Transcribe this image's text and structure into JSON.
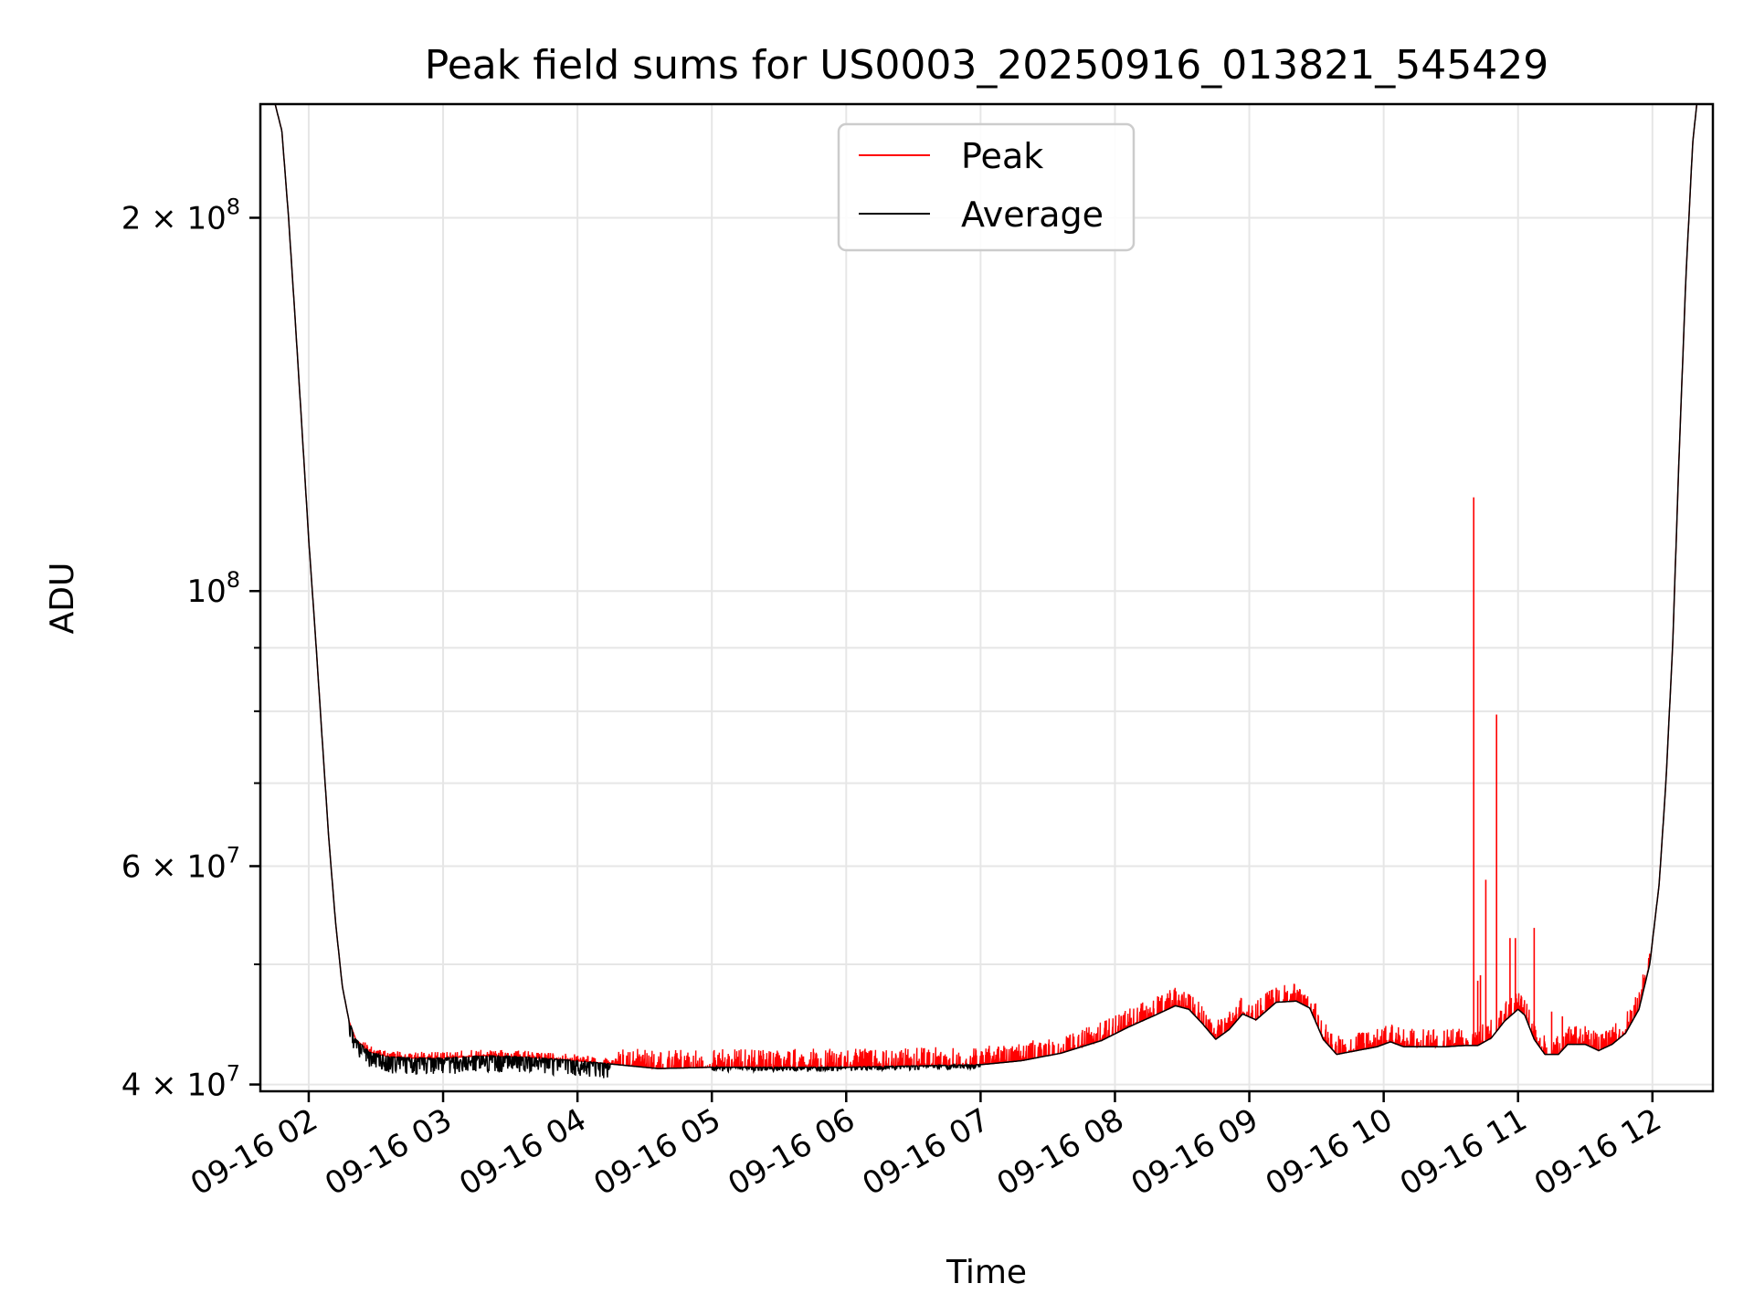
{
  "chart_data": {
    "type": "line",
    "title": "Peak field sums for US0003_20250916_013821_545429",
    "xlabel": "Time",
    "ylabel": "ADU",
    "yscale": "log",
    "ylim": [
      39500000,
      247000000
    ],
    "xlim_hours": [
      1.64,
      12.45
    ],
    "grid": true,
    "legend_position": "upper center",
    "x_ticks": [
      {
        "label": "09-16 02",
        "hour": 2
      },
      {
        "label": "09-16 03",
        "hour": 3
      },
      {
        "label": "09-16 04",
        "hour": 4
      },
      {
        "label": "09-16 05",
        "hour": 5
      },
      {
        "label": "09-16 06",
        "hour": 6
      },
      {
        "label": "09-16 07",
        "hour": 7
      },
      {
        "label": "09-16 08",
        "hour": 8
      },
      {
        "label": "09-16 09",
        "hour": 9
      },
      {
        "label": "09-16 10",
        "hour": 10
      },
      {
        "label": "09-16 11",
        "hour": 11
      },
      {
        "label": "09-16 12",
        "hour": 12
      }
    ],
    "y_major_ticks": [
      {
        "value": 40000000,
        "mant": "4",
        "exp": "7"
      },
      {
        "value": 60000000,
        "mant": "6",
        "exp": "7"
      },
      {
        "value": 100000000,
        "mant": "",
        "exp": "8"
      },
      {
        "value": 200000000,
        "mant": "2",
        "exp": "8"
      }
    ],
    "y_minor_ticks": [
      50000000,
      70000000,
      80000000,
      90000000
    ],
    "series": [
      {
        "name": "Average",
        "color": "#000000",
        "points": [
          [
            1.64,
            247000000
          ],
          [
            1.75,
            247000000
          ],
          [
            1.8,
            235000000
          ],
          [
            1.85,
            200000000
          ],
          [
            1.9,
            165000000
          ],
          [
            1.95,
            135000000
          ],
          [
            2.0,
            110000000
          ],
          [
            2.05,
            92000000
          ],
          [
            2.1,
            76000000
          ],
          [
            2.15,
            63000000
          ],
          [
            2.2,
            54000000
          ],
          [
            2.25,
            48000000
          ],
          [
            2.3,
            45000000
          ],
          [
            2.35,
            43500000
          ],
          [
            2.45,
            42500000
          ],
          [
            2.6,
            42100000
          ],
          [
            2.8,
            42000000
          ],
          [
            3.0,
            42000000
          ],
          [
            3.3,
            42200000
          ],
          [
            3.6,
            42100000
          ],
          [
            4.0,
            41800000
          ],
          [
            4.3,
            41500000
          ],
          [
            4.6,
            41200000
          ],
          [
            5.0,
            41300000
          ],
          [
            5.5,
            41300000
          ],
          [
            6.0,
            41300000
          ],
          [
            6.5,
            41400000
          ],
          [
            7.0,
            41500000
          ],
          [
            7.3,
            41800000
          ],
          [
            7.6,
            42400000
          ],
          [
            7.9,
            43400000
          ],
          [
            8.1,
            44500000
          ],
          [
            8.3,
            45500000
          ],
          [
            8.45,
            46300000
          ],
          [
            8.55,
            46000000
          ],
          [
            8.65,
            44800000
          ],
          [
            8.75,
            43500000
          ],
          [
            8.85,
            44300000
          ],
          [
            8.95,
            45600000
          ],
          [
            9.05,
            45100000
          ],
          [
            9.2,
            46600000
          ],
          [
            9.35,
            46700000
          ],
          [
            9.45,
            46100000
          ],
          [
            9.55,
            43500000
          ],
          [
            9.65,
            42300000
          ],
          [
            9.8,
            42600000
          ],
          [
            9.95,
            42900000
          ],
          [
            10.05,
            43300000
          ],
          [
            10.15,
            42900000
          ],
          [
            10.3,
            42900000
          ],
          [
            10.45,
            42900000
          ],
          [
            10.6,
            43000000
          ],
          [
            10.7,
            43000000
          ],
          [
            10.8,
            43600000
          ],
          [
            10.9,
            45000000
          ],
          [
            11.0,
            46000000
          ],
          [
            11.05,
            45500000
          ],
          [
            11.12,
            43500000
          ],
          [
            11.2,
            42300000
          ],
          [
            11.3,
            42300000
          ],
          [
            11.37,
            43100000
          ],
          [
            11.5,
            43100000
          ],
          [
            11.6,
            42600000
          ],
          [
            11.7,
            43100000
          ],
          [
            11.8,
            44000000
          ],
          [
            11.9,
            46000000
          ],
          [
            11.98,
            50000000
          ],
          [
            12.05,
            58000000
          ],
          [
            12.1,
            70000000
          ],
          [
            12.15,
            90000000
          ],
          [
            12.2,
            130000000
          ],
          [
            12.25,
            180000000
          ],
          [
            12.3,
            230000000
          ],
          [
            12.33,
            247000000
          ],
          [
            12.45,
            247000000
          ]
        ]
      },
      {
        "name": "Peak",
        "color": "#ff0000",
        "spikes": [
          [
            10.67,
            119000000
          ],
          [
            10.76,
            58500000
          ],
          [
            10.84,
            79500000
          ],
          [
            10.94,
            52500000
          ],
          [
            10.98,
            52500000
          ],
          [
            11.12,
            53500000
          ],
          [
            10.7,
            48500000
          ],
          [
            10.72,
            49000000
          ],
          [
            9.15,
            47600000
          ],
          [
            8.5,
            47200000
          ],
          [
            8.35,
            47200000
          ],
          [
            11.25,
            45800000
          ],
          [
            11.33,
            45400000
          ],
          [
            10.2,
            44200000
          ],
          [
            10.45,
            44200000
          ]
        ]
      }
    ],
    "legend": [
      {
        "label": "Peak",
        "color": "#ff0000"
      },
      {
        "label": "Average",
        "color": "#000000"
      }
    ]
  }
}
